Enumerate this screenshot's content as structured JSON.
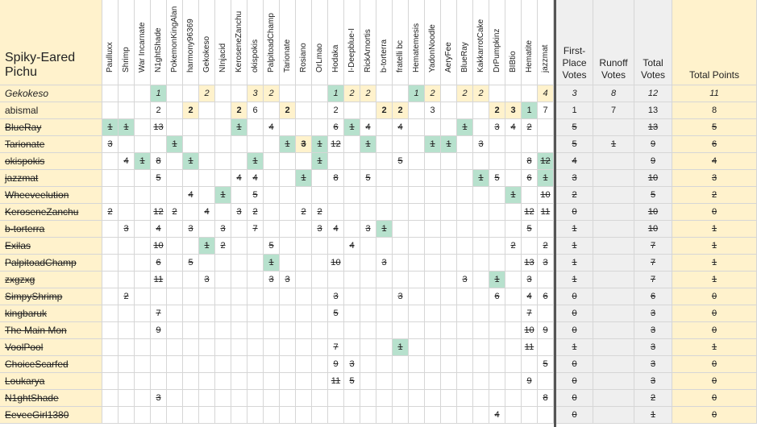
{
  "corner_title": "Spiky-Eared Pichu",
  "columns": [
    "Paulluxx",
    "Shrimp",
    "War Incarnate",
    "N1ghtShade",
    "PokemonKingAlan",
    "harmony96369",
    "Gekokeso",
    "NInjacid",
    "KeroseneZanchu",
    "okispokis",
    "PalpitoadChamp",
    "Tarionate",
    "Rosiano",
    "OrLmao",
    "Hodaka",
    "I-Deepblue-I",
    "RickArnortis",
    "b-torterra",
    "fratelli bc",
    "Hematemesis",
    "YadonNoodle",
    "AeryFee",
    "BlueRay",
    "KakkarrotCake",
    "DrPumpkinz",
    "BIBtio",
    "Hematite",
    "jazzmat"
  ],
  "stat_headers": [
    "First-Place Votes",
    "Runoff Votes",
    "Total Votes",
    "Total Points"
  ],
  "rows": [
    {
      "name": "Gekokeso",
      "style": "italic",
      "cells": {
        "3": "1",
        "6": "2",
        "9": "3",
        "10": "2",
        "14": "1",
        "15": "2",
        "16": "2",
        "19": "1",
        "20": "2",
        "22": "2",
        "23": "2",
        "27": "4"
      },
      "green": [
        3,
        14,
        19
      ],
      "yellow": [
        6,
        9,
        10,
        15,
        16,
        20,
        22,
        23,
        27
      ],
      "stats": [
        "3",
        "8",
        "12",
        "11"
      ]
    },
    {
      "name": "abismal",
      "style": "normal",
      "cells": {
        "3": "2",
        "5": "2",
        "8": "2",
        "9": "6",
        "11": "2",
        "14": "2",
        "17": "2",
        "18": "2",
        "20": "3",
        "24": "2",
        "25": "3",
        "26": "1",
        "27": "7"
      },
      "green": [
        26
      ],
      "yellow": [
        5,
        8,
        11,
        17,
        18,
        24,
        25
      ],
      "stats": [
        "1",
        "7",
        "13",
        "8"
      ]
    },
    {
      "name": "BlueRay",
      "style": "strike",
      "cells": {
        "0": "1",
        "1": "1",
        "3": "13",
        "8": "1",
        "10": "4",
        "14": "6",
        "15": "1",
        "16": "4",
        "18": "4",
        "22": "1",
        "24": "3",
        "25": "4",
        "26": "2"
      },
      "green": [
        0,
        1,
        8,
        15,
        22
      ],
      "yellow": [],
      "stats": [
        "5",
        "",
        "13",
        "5"
      ]
    },
    {
      "name": "Tarionate",
      "style": "strike",
      "cells": {
        "0": "3",
        "4": "1",
        "11": "1",
        "12": "3",
        "13": "1",
        "14": "12",
        "16": "1",
        "20": "1",
        "21": "1",
        "23": "3"
      },
      "green": [
        4,
        11,
        13,
        16,
        20,
        21
      ],
      "yellow": [
        12
      ],
      "stats": [
        "5",
        "1",
        "9",
        "6"
      ]
    },
    {
      "name": "okispokis",
      "style": "strike",
      "cells": {
        "1": "4",
        "2": "1",
        "3": "8",
        "5": "1",
        "9": "1",
        "13": "1",
        "18": "5",
        "26": "8",
        "27": "12"
      },
      "green": [
        2,
        5,
        9,
        13,
        27
      ],
      "yellow": [],
      "stats": [
        "4",
        "",
        "9",
        "4"
      ]
    },
    {
      "name": "jazzmat",
      "style": "strike",
      "cells": {
        "3": "5",
        "8": "4",
        "9": "4",
        "12": "1",
        "14": "8",
        "16": "5",
        "23": "1",
        "24": "5",
        "26": "6",
        "27": "1"
      },
      "green": [
        12,
        23,
        27
      ],
      "yellow": [],
      "stats": [
        "3",
        "",
        "10",
        "3"
      ]
    },
    {
      "name": "Wheeveelution",
      "style": "strike",
      "cells": {
        "5": "4",
        "7": "1",
        "9": "5",
        "25": "1",
        "27": "10"
      },
      "green": [
        7,
        25
      ],
      "yellow": [],
      "stats": [
        "2",
        "",
        "5",
        "2"
      ]
    },
    {
      "name": "KeroseneZanchu",
      "style": "strike",
      "cells": {
        "0": "2",
        "3": "12",
        "4": "2",
        "6": "4",
        "8": "3",
        "9": "2",
        "12": "2",
        "13": "2",
        "26": "12",
        "27": "11"
      },
      "green": [],
      "yellow": [],
      "stats": [
        "0",
        "",
        "10",
        "0"
      ]
    },
    {
      "name": "b-torterra",
      "style": "strike",
      "cells": {
        "1": "3",
        "3": "4",
        "5": "3",
        "7": "3",
        "9": "7",
        "13": "3",
        "14": "4",
        "16": "3",
        "17": "1",
        "26": "5"
      },
      "green": [
        17
      ],
      "yellow": [],
      "stats": [
        "1",
        "",
        "10",
        "1"
      ]
    },
    {
      "name": "Exilas",
      "style": "strike",
      "cells": {
        "3": "10",
        "6": "1",
        "7": "2",
        "10": "5",
        "15": "4",
        "25": "2",
        "27": "2"
      },
      "green": [
        6
      ],
      "yellow": [],
      "stats": [
        "1",
        "",
        "7",
        "1"
      ]
    },
    {
      "name": "PalpitoadChamp",
      "style": "strike",
      "cells": {
        "3": "6",
        "5": "5",
        "10": "1",
        "14": "10",
        "17": "3",
        "26": "13",
        "27": "3"
      },
      "green": [
        10
      ],
      "yellow": [],
      "stats": [
        "1",
        "",
        "7",
        "1"
      ]
    },
    {
      "name": "zxgzxg",
      "style": "strike",
      "cells": {
        "3": "11",
        "6": "3",
        "10": "3",
        "11": "3",
        "22": "3",
        "24": "1",
        "26": "3"
      },
      "green": [
        24
      ],
      "yellow": [],
      "stats": [
        "1",
        "",
        "7",
        "1"
      ]
    },
    {
      "name": "SimpyShrimp",
      "style": "strike",
      "cells": {
        "1": "2",
        "14": "3",
        "18": "3",
        "24": "6",
        "26": "4",
        "27": "6"
      },
      "green": [],
      "yellow": [],
      "stats": [
        "0",
        "",
        "6",
        "0"
      ]
    },
    {
      "name": "kingbaruk",
      "style": "strike",
      "cells": {
        "3": "7",
        "14": "5",
        "26": "7"
      },
      "green": [],
      "yellow": [],
      "stats": [
        "0",
        "",
        "3",
        "0"
      ]
    },
    {
      "name": "The Main Mon",
      "style": "strike",
      "cells": {
        "3": "9",
        "26": "10",
        "27": "9"
      },
      "green": [],
      "yellow": [],
      "stats": [
        "0",
        "",
        "3",
        "0"
      ]
    },
    {
      "name": "VoolPool",
      "style": "strike",
      "cells": {
        "14": "7",
        "18": "1",
        "26": "11"
      },
      "green": [
        18
      ],
      "yellow": [],
      "stats": [
        "1",
        "",
        "3",
        "1"
      ]
    },
    {
      "name": "ChoiceScarfed",
      "style": "strike",
      "cells": {
        "14": "9",
        "15": "3",
        "27": "5"
      },
      "green": [],
      "yellow": [],
      "stats": [
        "0",
        "",
        "3",
        "0"
      ]
    },
    {
      "name": "Loukarya",
      "style": "strike",
      "cells": {
        "14": "11",
        "15": "5",
        "26": "9"
      },
      "green": [],
      "yellow": [],
      "stats": [
        "0",
        "",
        "3",
        "0"
      ]
    },
    {
      "name": "N1ghtShade",
      "style": "strike",
      "cells": {
        "3": "3",
        "27": "8"
      },
      "green": [],
      "yellow": [],
      "stats": [
        "0",
        "",
        "2",
        "0"
      ]
    },
    {
      "name": "EeveeGirl1380",
      "style": "strike",
      "cells": {
        "24": "4"
      },
      "green": [],
      "yellow": [],
      "stats": [
        "0",
        "",
        "1",
        "0"
      ]
    }
  ]
}
